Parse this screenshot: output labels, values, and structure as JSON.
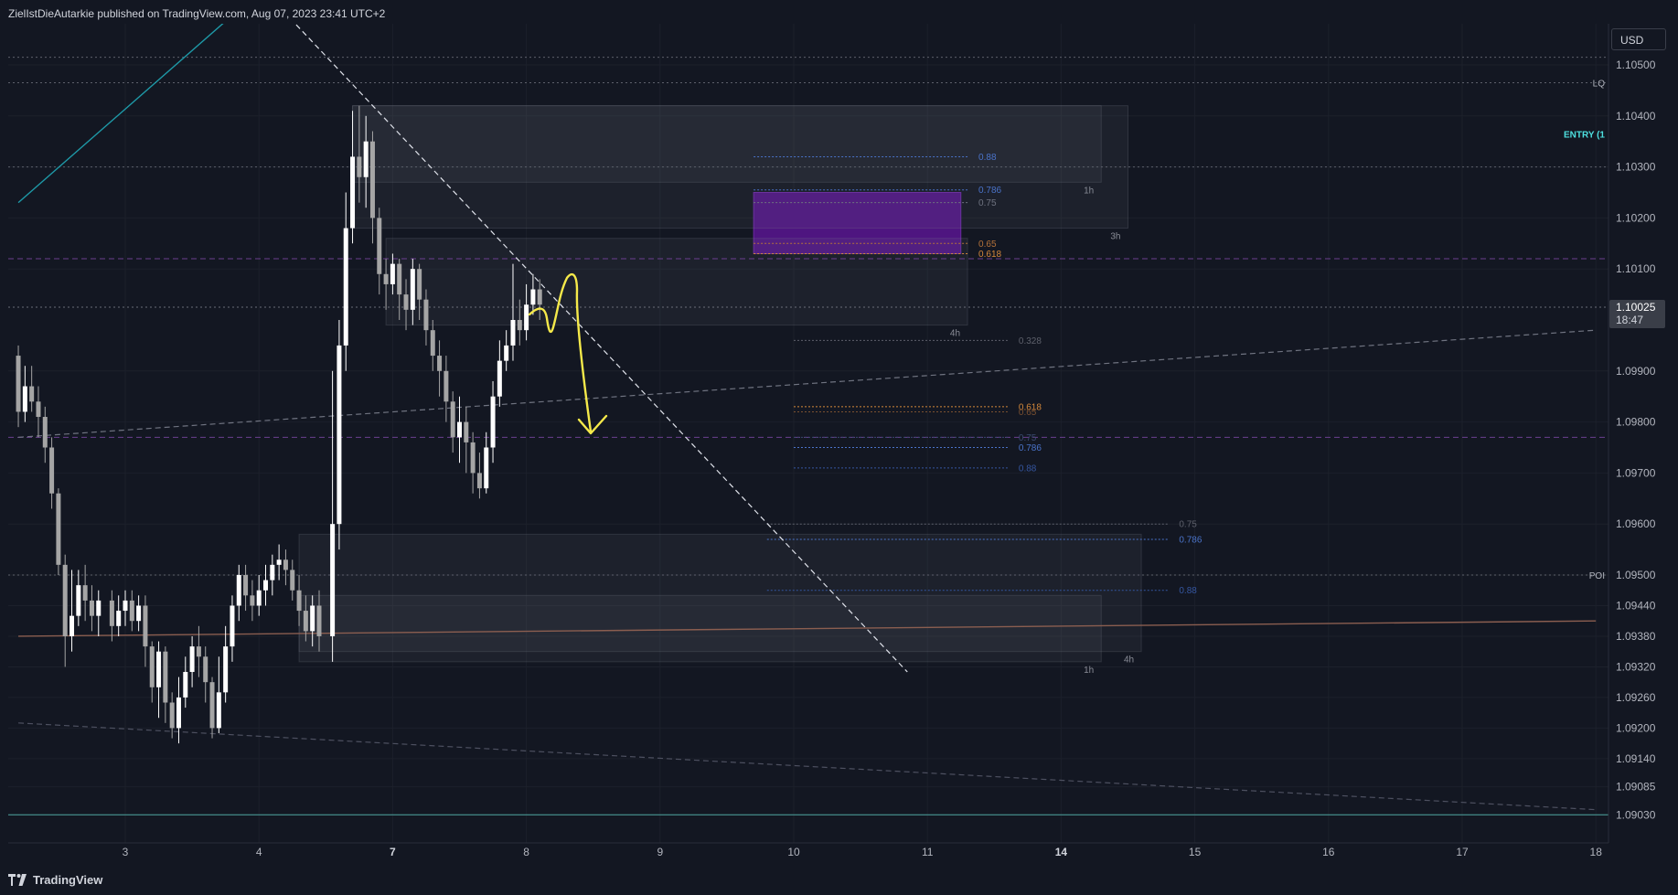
{
  "header": {
    "published_text": "ZielIstDieAutarkie published on TradingView.com, Aug 07, 2023 23:41 UTC+2"
  },
  "footer": {
    "brand": "TradingView",
    "logo_icon": "tradingview-logo-icon"
  },
  "currency": "USD",
  "colors": {
    "background": "#131722",
    "candle_up": "#ffffff",
    "candle_down": "#a5a5a5",
    "teal_line": "#1e9aa8",
    "brown_line": "#8b5e50",
    "purple_zone": "#5a1a8c",
    "orange_fib": "#d4883a",
    "blue_fib": "#4a73c9",
    "yellow_arrow": "#f5e94a"
  },
  "chart_data": {
    "type": "candlestick",
    "instrument_currency": "USD",
    "ylim": [
      1.0898,
      1.1055
    ],
    "y_ticks": [
      1.105,
      1.104,
      1.103,
      1.102,
      1.101,
      1.099,
      1.098,
      1.097,
      1.096,
      1.095,
      1.0944,
      1.0938,
      1.0932,
      1.0926,
      1.092,
      1.0914,
      1.09085,
      1.0903
    ],
    "y_tick_labels": [
      "1.10500",
      "1.10400",
      "1.10300",
      "1.10200",
      "1.10100",
      "1.09900",
      "1.09800",
      "1.09700",
      "1.09600",
      "1.09500",
      "1.09440",
      "1.09380",
      "1.09320",
      "1.09260",
      "1.09200",
      "1.09140",
      "1.09085",
      "1.09030"
    ],
    "current_price": {
      "value": 1.10025,
      "label": "1.10025",
      "countdown": "18:47"
    },
    "x_ticks": [
      {
        "label": "3",
        "day": 3,
        "bold": false
      },
      {
        "label": "4",
        "day": 4,
        "bold": false
      },
      {
        "label": "7",
        "day": 5,
        "bold": true
      },
      {
        "label": "8",
        "day": 6,
        "bold": false
      },
      {
        "label": "9",
        "day": 7,
        "bold": false
      },
      {
        "label": "10",
        "day": 8,
        "bold": false
      },
      {
        "label": "11",
        "day": 9,
        "bold": false
      },
      {
        "label": "14",
        "day": 10,
        "bold": true
      },
      {
        "label": "15",
        "day": 11,
        "bold": false
      },
      {
        "label": "16",
        "day": 12,
        "bold": false
      },
      {
        "label": "17",
        "day": 13,
        "bold": false
      },
      {
        "label": "18",
        "day": 14,
        "bold": false
      }
    ],
    "candles": [
      [
        2.2,
        1.0993,
        1.0982,
        1.0995,
        1.0979
      ],
      [
        2.25,
        1.0982,
        1.0987,
        1.0991,
        1.098
      ],
      [
        2.3,
        1.0987,
        1.0984,
        1.0991,
        1.0982
      ],
      [
        2.35,
        1.0984,
        1.0981,
        1.0987,
        1.0977
      ],
      [
        2.4,
        1.0981,
        1.0975,
        1.0983,
        1.0972
      ],
      [
        2.45,
        1.0975,
        1.0966,
        1.0977,
        1.0963
      ],
      [
        2.5,
        1.0966,
        1.0952,
        1.0967,
        1.095
      ],
      [
        2.55,
        1.0952,
        1.0938,
        1.0954,
        1.0932
      ],
      [
        2.6,
        1.0938,
        1.0942,
        1.0951,
        1.0935
      ],
      [
        2.65,
        1.0942,
        1.0948,
        1.0951,
        1.094
      ],
      [
        2.7,
        1.0948,
        1.0945,
        1.0952,
        1.0941
      ],
      [
        2.75,
        1.0945,
        1.0942,
        1.0948,
        1.0939
      ],
      [
        2.8,
        1.0942,
        1.0945,
        1.0947,
        1.0938
      ],
      [
        2.9,
        1.0945,
        1.094,
        1.0947,
        1.0937
      ],
      [
        2.95,
        1.094,
        1.0943,
        1.0946,
        1.0938
      ],
      [
        3.0,
        1.0943,
        1.0945,
        1.0947,
        1.094
      ],
      [
        3.05,
        1.0945,
        1.0941,
        1.0947,
        1.0939
      ],
      [
        3.1,
        1.0941,
        1.0944,
        1.0946,
        1.0939
      ],
      [
        3.15,
        1.0944,
        1.0936,
        1.0946,
        1.0932
      ],
      [
        3.2,
        1.0936,
        1.0928,
        1.0937,
        1.0925
      ],
      [
        3.25,
        1.0928,
        1.0935,
        1.0937,
        1.0922
      ],
      [
        3.3,
        1.0935,
        1.0925,
        1.0936,
        1.0921
      ],
      [
        3.35,
        1.0925,
        1.092,
        1.0927,
        1.0918
      ],
      [
        3.4,
        1.092,
        1.0926,
        1.093,
        1.0917
      ],
      [
        3.45,
        1.0926,
        1.0931,
        1.0934,
        1.0924
      ],
      [
        3.5,
        1.0931,
        1.0936,
        1.0938,
        1.0928
      ],
      [
        3.55,
        1.0936,
        1.0934,
        1.094,
        1.093
      ],
      [
        3.6,
        1.0934,
        1.0929,
        1.0936,
        1.0925
      ],
      [
        3.65,
        1.0929,
        1.092,
        1.093,
        1.0918
      ],
      [
        3.7,
        1.092,
        1.0927,
        1.0934,
        1.0919
      ],
      [
        3.75,
        1.0927,
        1.0936,
        1.094,
        1.0925
      ],
      [
        3.8,
        1.0936,
        1.0944,
        1.0946,
        1.0933
      ],
      [
        3.85,
        1.0944,
        1.095,
        1.0952,
        1.0941
      ],
      [
        3.9,
        1.095,
        1.0946,
        1.0952,
        1.0943
      ],
      [
        3.95,
        1.0946,
        1.0944,
        1.0949,
        1.0941
      ],
      [
        4.0,
        1.0944,
        1.0947,
        1.095,
        1.0942
      ],
      [
        4.05,
        1.0947,
        1.0949,
        1.0952,
        1.0944
      ],
      [
        4.1,
        1.0949,
        1.0952,
        1.0954,
        1.0946
      ],
      [
        4.15,
        1.0952,
        1.0953,
        1.0956,
        1.0949
      ],
      [
        4.2,
        1.0953,
        1.0951,
        1.0955,
        1.0948
      ],
      [
        4.25,
        1.0951,
        1.0947,
        1.0953,
        1.0945
      ],
      [
        4.3,
        1.0947,
        1.0943,
        1.095,
        1.094
      ],
      [
        4.35,
        1.0943,
        1.0939,
        1.0946,
        1.0937
      ],
      [
        4.4,
        1.0939,
        1.0944,
        1.0946,
        1.0936
      ],
      [
        4.45,
        1.0944,
        1.0938,
        1.0947,
        1.0935
      ],
      [
        4.55,
        1.0938,
        1.096,
        1.099,
        1.0933
      ],
      [
        4.6,
        1.096,
        1.0995,
        1.1,
        1.0955
      ],
      [
        4.65,
        1.0995,
        1.1018,
        1.1025,
        1.099
      ],
      [
        4.7,
        1.1018,
        1.1032,
        1.1041,
        1.1015
      ],
      [
        4.75,
        1.1032,
        1.1028,
        1.1042,
        1.1023
      ],
      [
        4.8,
        1.1028,
        1.1035,
        1.104,
        1.1022
      ],
      [
        4.85,
        1.1035,
        1.102,
        1.1037,
        1.1015
      ],
      [
        4.9,
        1.102,
        1.1009,
        1.1022,
        1.1005
      ],
      [
        4.95,
        1.1009,
        1.1007,
        1.1012,
        1.1002
      ],
      [
        5.0,
        1.1007,
        1.1011,
        1.1013,
        1.1005
      ],
      [
        5.05,
        1.1011,
        1.1005,
        1.1012,
        1.1
      ],
      [
        5.1,
        1.1005,
        1.1002,
        1.1008,
        1.0998
      ],
      [
        5.15,
        1.1002,
        1.101,
        1.1012,
        1.0999
      ],
      [
        5.2,
        1.101,
        1.1004,
        1.1011,
        1.1
      ],
      [
        5.25,
        1.1004,
        1.0998,
        1.1006,
        1.0995
      ],
      [
        5.3,
        1.0998,
        1.0993,
        1.1,
        1.099
      ],
      [
        5.35,
        1.0993,
        1.099,
        1.0996,
        1.0985
      ],
      [
        5.4,
        1.099,
        1.0984,
        1.0993,
        1.098
      ],
      [
        5.45,
        1.0984,
        1.0977,
        1.0986,
        1.0974
      ],
      [
        5.5,
        1.0977,
        1.098,
        1.0985,
        1.0972
      ],
      [
        5.55,
        1.098,
        1.0976,
        1.0983,
        1.097
      ],
      [
        5.6,
        1.0976,
        1.097,
        1.0978,
        1.0966
      ],
      [
        5.65,
        1.097,
        1.0967,
        1.0974,
        1.0965
      ],
      [
        5.7,
        1.0967,
        1.0975,
        1.0978,
        1.0966
      ],
      [
        5.75,
        1.0975,
        1.0985,
        1.0988,
        1.0972
      ],
      [
        5.8,
        1.0985,
        1.0992,
        1.0996,
        1.0983
      ],
      [
        5.85,
        1.0992,
        1.0995,
        1.0998,
        1.099
      ],
      [
        5.9,
        1.0995,
        1.1,
        1.1011,
        1.0992
      ],
      [
        5.95,
        1.1,
        1.0998,
        1.1004,
        1.0995
      ],
      [
        6.0,
        1.0998,
        1.1003,
        1.1007,
        1.0996
      ],
      [
        6.05,
        1.1003,
        1.1006,
        1.1009,
        1.1001
      ],
      [
        6.1,
        1.1006,
        1.1003,
        1.1008,
        1.1
      ]
    ],
    "lines": [
      {
        "name": "",
        "style": "solid",
        "color": "#1e9aa8",
        "from": [
          2.2,
          1.1023
        ],
        "to": [
          3.9,
          1.1062
        ]
      },
      {
        "name": "",
        "style": "dashed",
        "color": "#e0e3eb",
        "from": [
          3.95,
          1.1067
        ],
        "to": [
          8.85,
          1.0931
        ]
      },
      {
        "name": "",
        "style": "dashed",
        "color": "#6f7380",
        "from": [
          2.2,
          1.0977
        ],
        "to": [
          14.0,
          1.0998
        ]
      },
      {
        "name": "",
        "style": "dashed",
        "color": "#4d5060",
        "from": [
          2.2,
          1.0921
        ],
        "to": [
          14.0,
          1.0904
        ]
      },
      {
        "name": "",
        "style": "solid",
        "color": "#8b5e50",
        "from": [
          2.2,
          1.0938
        ],
        "to": [
          14.0,
          1.0941
        ]
      }
    ],
    "horizontal_levels": [
      {
        "label": "",
        "price": 1.10515,
        "style": "dotted",
        "color": "#5d606b"
      },
      {
        "label": "LQ",
        "price": 1.10465,
        "style": "dotted",
        "color": "#5d606b"
      },
      {
        "label": "ENTRY (1",
        "price": 1.10365,
        "style": "solid",
        "color": "#4ee0e0"
      },
      {
        "label": "",
        "price": 1.103,
        "style": "dotted",
        "color": "#5d606b"
      },
      {
        "label": "",
        "price": 1.1012,
        "style": "dashed",
        "color": "#6b3f8f"
      },
      {
        "label": "",
        "price": 1.10025,
        "style": "dotted",
        "color": "#6a6d78"
      },
      {
        "label": "",
        "price": 1.0977,
        "style": "dashed",
        "color": "#6b3f8f"
      },
      {
        "label": "POI",
        "price": 1.095,
        "style": "dotted",
        "color": "#5d606b"
      },
      {
        "label": "",
        "price": 1.0903,
        "style": "solid",
        "color": "#4ea5a0"
      }
    ],
    "zones": [
      {
        "type": "purple",
        "x": [
          7.7,
          9.25
        ],
        "y": [
          1.1025,
          1.1013
        ]
      },
      {
        "type": "gray",
        "x": [
          4.7,
          10.3
        ],
        "y": [
          1.1042,
          1.1027
        ],
        "label": "1h"
      },
      {
        "type": "gray",
        "x": [
          4.7,
          10.5
        ],
        "y": [
          1.1042,
          1.1018
        ],
        "label": "3h"
      },
      {
        "type": "gray",
        "x": [
          4.95,
          9.3
        ],
        "y": [
          1.1016,
          1.0999
        ],
        "label": "4h"
      },
      {
        "type": "gray",
        "x": [
          4.3,
          10.6
        ],
        "y": [
          1.0958,
          1.0935
        ],
        "label": "4h"
      },
      {
        "type": "gray",
        "x": [
          4.3,
          10.3
        ],
        "y": [
          1.0946,
          1.0933
        ],
        "label": "1h"
      },
      {
        "type": "teal_box",
        "x": [
          16.65,
          17.0
        ],
        "y": [
          1.1051,
          1.0958
        ]
      }
    ],
    "fib_levels": [
      {
        "label": "0.88",
        "price": 1.1032,
        "x": [
          7.7,
          9.3
        ],
        "color": "#4a73c9"
      },
      {
        "label": "0.786",
        "price": 1.10255,
        "x": [
          7.7,
          9.3
        ],
        "color": "#4a73c9"
      },
      {
        "label": "0.75",
        "price": 1.1023,
        "x": [
          7.7,
          9.3
        ],
        "color": "#6f7380"
      },
      {
        "label": "0.65",
        "price": 1.1015,
        "x": [
          7.7,
          9.3
        ],
        "color": "#b4723a"
      },
      {
        "label": "0.618",
        "price": 1.1013,
        "x": [
          7.7,
          9.3
        ],
        "color": "#d4883a"
      },
      {
        "label": "0.328",
        "price": 1.0996,
        "x": [
          8.0,
          9.6
        ],
        "color": "#5d606b"
      },
      {
        "label": "0.618",
        "price": 1.0983,
        "x": [
          8.0,
          9.6
        ],
        "color": "#d4883a"
      },
      {
        "label": "0.65",
        "price": 1.0982,
        "x": [
          8.0,
          9.6
        ],
        "color": "#7a5030"
      },
      {
        "label": "0.75",
        "price": 1.0977,
        "x": [
          8.0,
          9.6
        ],
        "color": "#3a4a70"
      },
      {
        "label": "0.786",
        "price": 1.0975,
        "x": [
          8.0,
          9.6
        ],
        "color": "#4a73c9"
      },
      {
        "label": "0.88",
        "price": 1.0971,
        "x": [
          8.0,
          9.6
        ],
        "color": "#3556a0"
      },
      {
        "label": "0.75",
        "price": 1.096,
        "x": [
          7.8,
          10.8
        ],
        "color": "#5d606b"
      },
      {
        "label": "0.786",
        "price": 1.0957,
        "x": [
          7.8,
          10.8
        ],
        "color": "#4a73c9"
      },
      {
        "label": "0.88",
        "price": 1.0947,
        "x": [
          7.8,
          10.8
        ],
        "color": "#3556a0"
      }
    ]
  }
}
